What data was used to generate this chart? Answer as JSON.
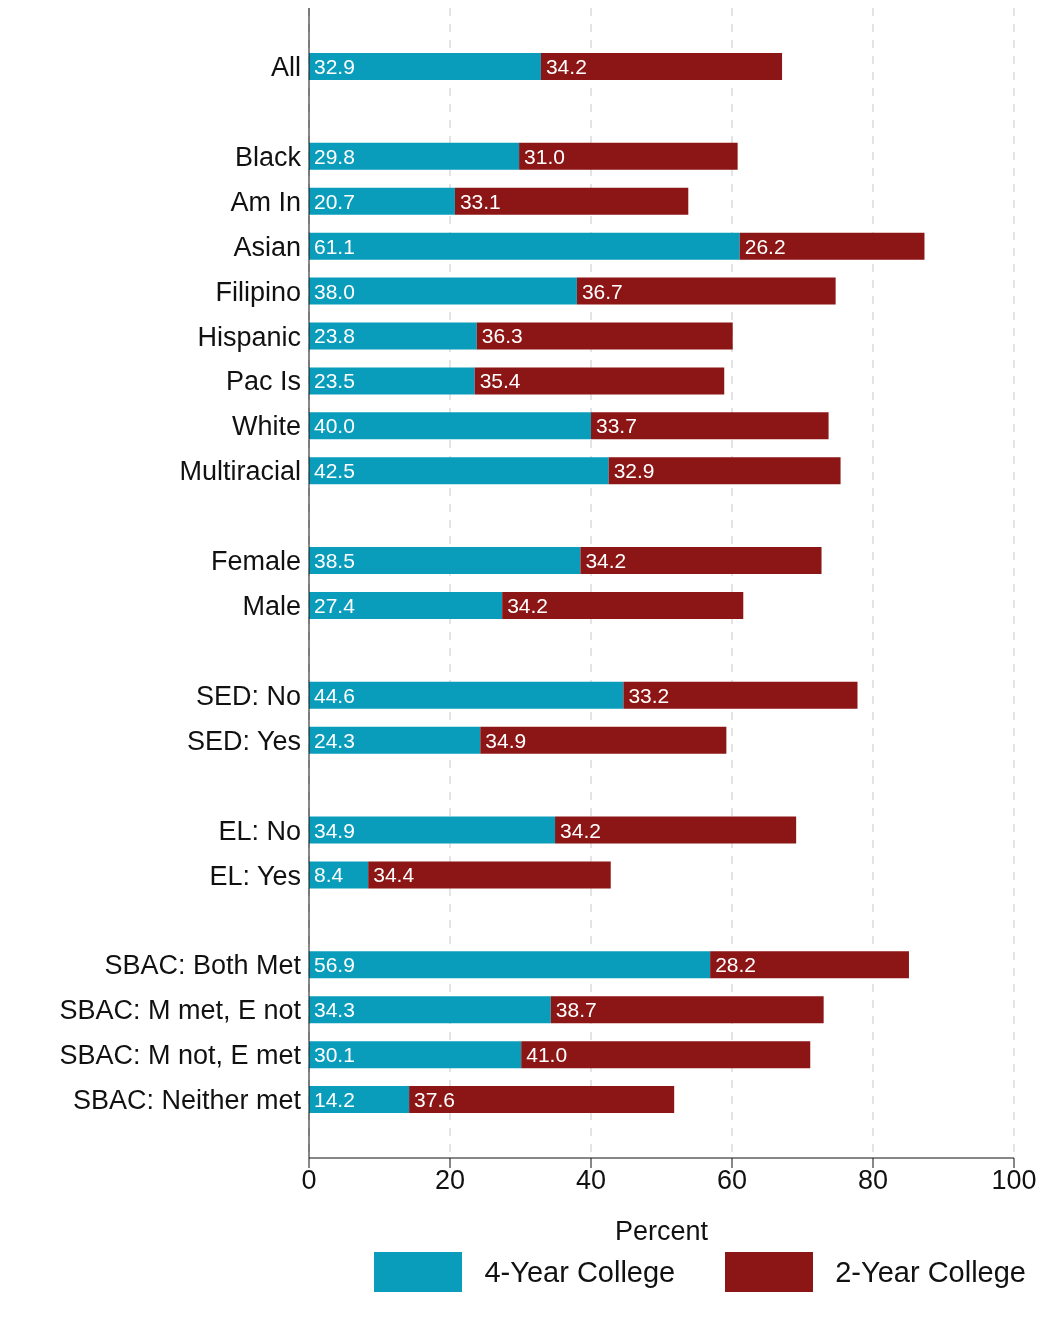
{
  "chart_data": {
    "type": "bar",
    "orientation": "horizontal",
    "stacked": true,
    "xlabel": "Percent",
    "categories": [
      "All",
      null,
      "Black",
      "Am In",
      "Asian",
      "Filipino",
      "Hispanic",
      "Pac Is",
      "White",
      "Multiracial",
      null,
      "Female",
      "Male",
      null,
      "SED: No",
      "SED: Yes",
      null,
      "EL: No",
      "EL: Yes",
      null,
      "SBAC: Both Met",
      "SBAC: M met, E not",
      "SBAC: M not, E met",
      "SBAC: Neither met"
    ],
    "series": [
      {
        "name": "4-Year College",
        "color": "#0a9cbb",
        "values": [
          32.9,
          null,
          29.8,
          20.7,
          61.1,
          38.0,
          23.8,
          23.5,
          40.0,
          42.5,
          null,
          38.5,
          27.4,
          null,
          44.6,
          24.3,
          null,
          34.9,
          8.4,
          null,
          56.9,
          34.3,
          30.1,
          14.2
        ],
        "value_labels": [
          "32.9",
          null,
          "29.8",
          "20.7",
          "61.1",
          "38.0",
          "23.8",
          "23.5",
          "40.0",
          "42.5",
          null,
          "38.5",
          "27.4",
          null,
          "44.6",
          "24.3",
          null,
          "34.9",
          "8.4",
          null,
          "56.9",
          "34.3",
          "30.1",
          "14.2"
        ]
      },
      {
        "name": "2-Year College",
        "color": "#8c1515",
        "values": [
          34.2,
          null,
          31.0,
          33.1,
          26.2,
          36.7,
          36.3,
          35.4,
          33.7,
          32.9,
          null,
          34.2,
          34.2,
          null,
          33.2,
          34.9,
          null,
          34.2,
          34.4,
          null,
          28.2,
          38.7,
          41.0,
          37.6
        ],
        "value_labels": [
          "34.2",
          null,
          "31.0",
          "33.1",
          "26.2",
          "36.7",
          "36.3",
          "35.4",
          "33.7",
          "32.9",
          null,
          "34.2",
          "34.2",
          null,
          "33.2",
          "34.9",
          null,
          "34.2",
          "34.4",
          null,
          "28.2",
          "38.7",
          "41.0",
          "37.6"
        ]
      }
    ],
    "xlim": [
      0,
      100
    ],
    "xticks": [
      0,
      20,
      40,
      60,
      80,
      100
    ],
    "grid": "x",
    "legend": "bottom"
  }
}
